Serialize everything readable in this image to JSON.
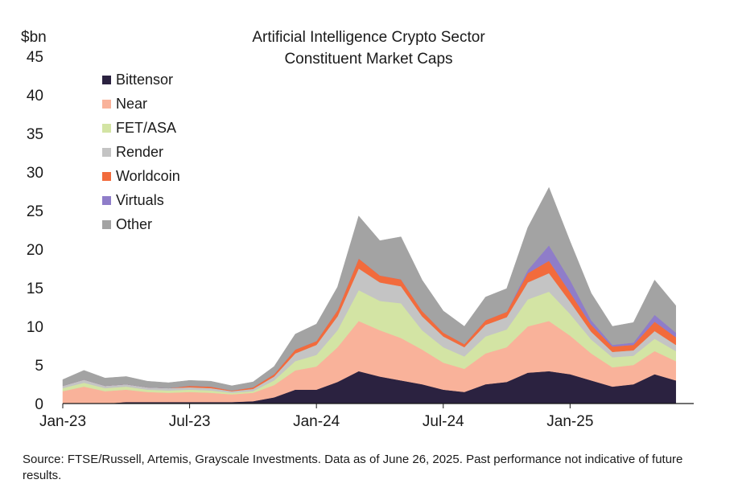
{
  "chart_data": {
    "type": "area",
    "stacked": true,
    "title": [
      "Artificial Intelligence Crypto Sector",
      "Constituent Market Caps"
    ],
    "unit_label": "$bn",
    "xlabel": "",
    "ylabel": "",
    "ylim": [
      0,
      45
    ],
    "yticks": [
      0,
      5,
      10,
      15,
      20,
      25,
      30,
      35,
      40,
      45
    ],
    "x_tick_labels": [
      "Jan-23",
      "Jul-23",
      "Jan-24",
      "Jul-24",
      "Jan-25"
    ],
    "x_tick_dates": [
      "2023-01",
      "2023-07",
      "2024-01",
      "2024-07",
      "2025-01"
    ],
    "grid": false,
    "legend_position": "top-left",
    "x": [
      "2023-01",
      "2023-02",
      "2023-03",
      "2023-04",
      "2023-05",
      "2023-06",
      "2023-07",
      "2023-08",
      "2023-09",
      "2023-10",
      "2023-11",
      "2023-12",
      "2024-01",
      "2024-02",
      "2024-03",
      "2024-04",
      "2024-05",
      "2024-06",
      "2024-07",
      "2024-08",
      "2024-09",
      "2024-10",
      "2024-11",
      "2024-12",
      "2025-01",
      "2025-02",
      "2025-03",
      "2025-04",
      "2025-05",
      "2025-06"
    ],
    "series": [
      {
        "name": "Bittensor",
        "color": "#2b2240",
        "values": [
          0,
          0,
          0,
          0.2,
          0.2,
          0.2,
          0.2,
          0.2,
          0.2,
          0.3,
          0.8,
          1.8,
          1.8,
          2.8,
          4.2,
          3.5,
          3.0,
          2.5,
          1.8,
          1.5,
          2.5,
          2.8,
          4.0,
          4.2,
          3.8,
          3.0,
          2.2,
          2.5,
          3.8,
          3.0
        ]
      },
      {
        "name": "Near",
        "color": "#f9b29a",
        "values": [
          1.6,
          2.2,
          1.6,
          1.6,
          1.3,
          1.2,
          1.3,
          1.2,
          1.0,
          1.1,
          1.6,
          2.5,
          3.0,
          4.5,
          6.5,
          6.0,
          5.5,
          4.5,
          3.5,
          3.0,
          4.0,
          4.5,
          6.0,
          6.5,
          5.0,
          3.5,
          2.5,
          2.5,
          3.0,
          2.5
        ]
      },
      {
        "name": "FET/ASA",
        "color": "#d3e4a4",
        "values": [
          0.4,
          0.5,
          0.4,
          0.4,
          0.3,
          0.3,
          0.3,
          0.3,
          0.2,
          0.2,
          0.6,
          1.2,
          1.5,
          2.2,
          4.0,
          3.8,
          4.5,
          2.5,
          2.0,
          1.6,
          2.2,
          2.3,
          3.5,
          3.8,
          2.8,
          1.8,
          1.3,
          1.2,
          1.6,
          1.3
        ]
      },
      {
        "name": "Render",
        "color": "#c4c4c4",
        "values": [
          0.3,
          0.4,
          0.3,
          0.3,
          0.3,
          0.3,
          0.3,
          0.3,
          0.2,
          0.3,
          0.5,
          1.0,
          1.3,
          1.8,
          2.8,
          2.4,
          2.2,
          1.8,
          1.4,
          1.2,
          1.5,
          1.6,
          2.2,
          2.4,
          1.6,
          1.0,
          0.7,
          0.7,
          1.0,
          0.8
        ]
      },
      {
        "name": "Worldcoin",
        "color": "#f26b3c",
        "values": [
          0,
          0,
          0,
          0,
          0,
          0,
          0.2,
          0.2,
          0.1,
          0.2,
          0.3,
          0.5,
          0.5,
          0.8,
          1.3,
          0.9,
          0.9,
          0.7,
          0.5,
          0.4,
          0.6,
          0.7,
          1.2,
          1.6,
          1.2,
          0.9,
          0.7,
          0.7,
          1.2,
          1.0
        ]
      },
      {
        "name": "Virtuals",
        "color": "#8f7dc9",
        "values": [
          0,
          0,
          0,
          0,
          0,
          0,
          0,
          0,
          0,
          0,
          0,
          0,
          0,
          0,
          0,
          0,
          0,
          0,
          0,
          0,
          0,
          0,
          0.4,
          2.0,
          1.6,
          0.6,
          0.2,
          0.3,
          0.9,
          0.6
        ]
      },
      {
        "name": "Other",
        "color": "#a3a3a3",
        "values": [
          0.8,
          1.2,
          1.0,
          1.0,
          0.8,
          0.7,
          0.7,
          0.7,
          0.6,
          0.7,
          1.0,
          2.0,
          2.2,
          3.0,
          5.5,
          4.5,
          5.5,
          4.0,
          2.8,
          2.3,
          3.0,
          3.0,
          5.5,
          7.5,
          5.0,
          3.5,
          2.4,
          2.6,
          4.5,
          3.5
        ]
      }
    ]
  },
  "source_note": "Source: FTSE/Russell, Artemis, Grayscale Investments. Data as of June 26, 2025. Past performance not indicative of future results."
}
